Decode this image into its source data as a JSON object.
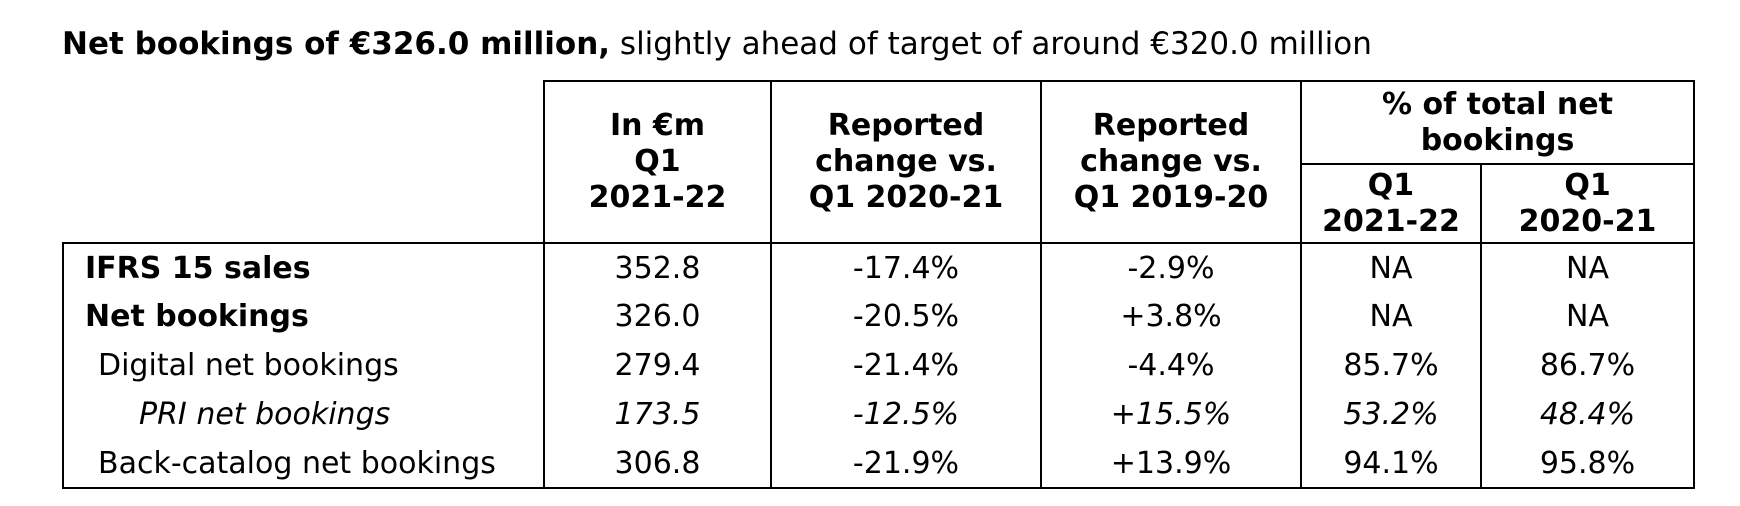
{
  "title": {
    "bold": "Net bookings of €326.0 million,",
    "rest": " slightly ahead of target of around €320.0 million"
  },
  "table": {
    "headers": {
      "in_em": [
        "In €m",
        "Q1",
        "2021-22"
      ],
      "chg1": [
        "Reported",
        "change vs.",
        "Q1 2020-21"
      ],
      "chg2": [
        "Reported",
        "change vs.",
        "Q1 2019-20"
      ],
      "group": [
        "% of total net",
        "bookings"
      ],
      "sub1": [
        "Q1",
        "2021-22"
      ],
      "sub2": [
        "Q1",
        "2020-21"
      ]
    },
    "rows": [
      {
        "label": "IFRS 15 sales",
        "value": "352.8",
        "chg1": "-17.4%",
        "chg2": "-2.9%",
        "pct1": "NA",
        "pct2": "NA"
      },
      {
        "label": "Net bookings",
        "value": "326.0",
        "chg1": "-20.5%",
        "chg2": "+3.8%",
        "pct1": "NA",
        "pct2": "NA"
      },
      {
        "label": "Digital net bookings",
        "value": "279.4",
        "chg1": "-21.4%",
        "chg2": "-4.4%",
        "pct1": "85.7%",
        "pct2": "86.7%"
      },
      {
        "label": "PRI net bookings",
        "value": "173.5",
        "chg1": "-12.5%",
        "chg2": "+15.5%",
        "pct1": "53.2%",
        "pct2": "48.4%"
      },
      {
        "label": "Back-catalog net bookings",
        "value": "306.8",
        "chg1": "-21.9%",
        "chg2": "+13.9%",
        "pct1": "94.1%",
        "pct2": "95.8%"
      }
    ],
    "colors": {
      "text": "#000000",
      "border": "#000000",
      "background": "#ffffff"
    }
  }
}
